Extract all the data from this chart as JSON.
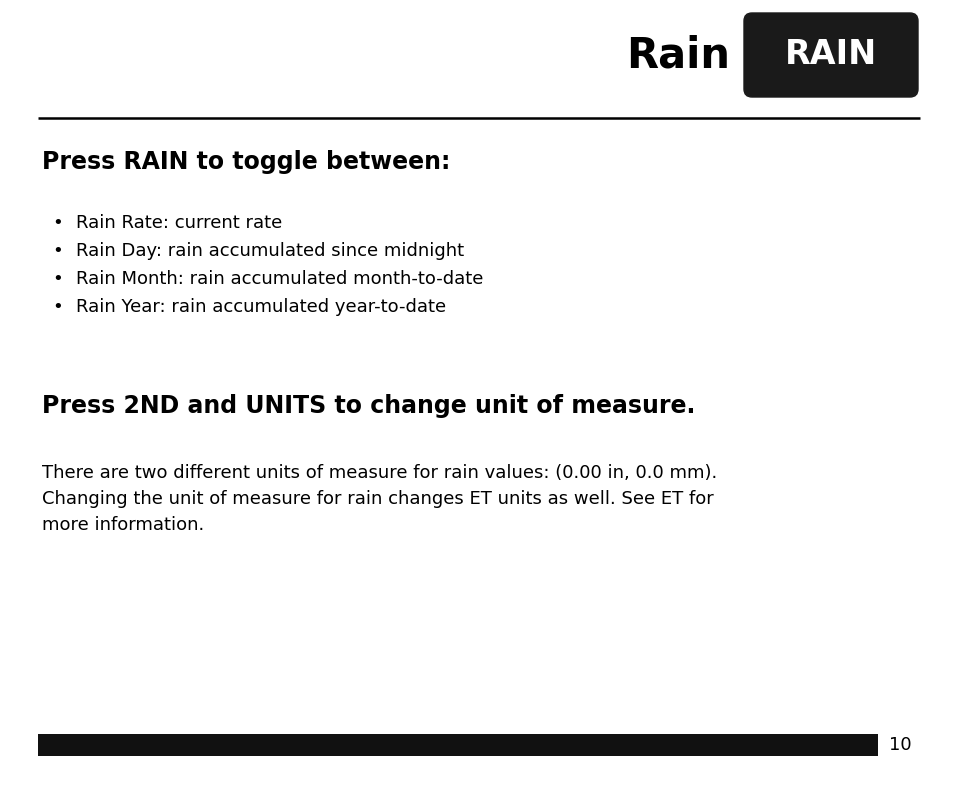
{
  "bg_color": "#ffffff",
  "text_color": "#000000",
  "title_text": "Rain",
  "button_text": "RAIN",
  "button_bg": "#1a1a1a",
  "button_text_color": "#ffffff",
  "section1_heading": "Press RAIN to toggle between:",
  "bullet_items": [
    "Rain Rate: current rate",
    "Rain Day: rain accumulated since midnight",
    "Rain Month: rain accumulated month-to-date",
    "Rain Year: rain accumulated year-to-date"
  ],
  "section2_heading": "Press 2ND and UNITS to change unit of measure.",
  "body_line1": "There are two different units of measure for rain values: (0.00 in, 0.0 mm).",
  "body_line2": "Changing the unit of measure for rain changes ET units as well. See ET for",
  "body_line3": "more information.",
  "footer_bar_color": "#111111",
  "page_number": "10"
}
